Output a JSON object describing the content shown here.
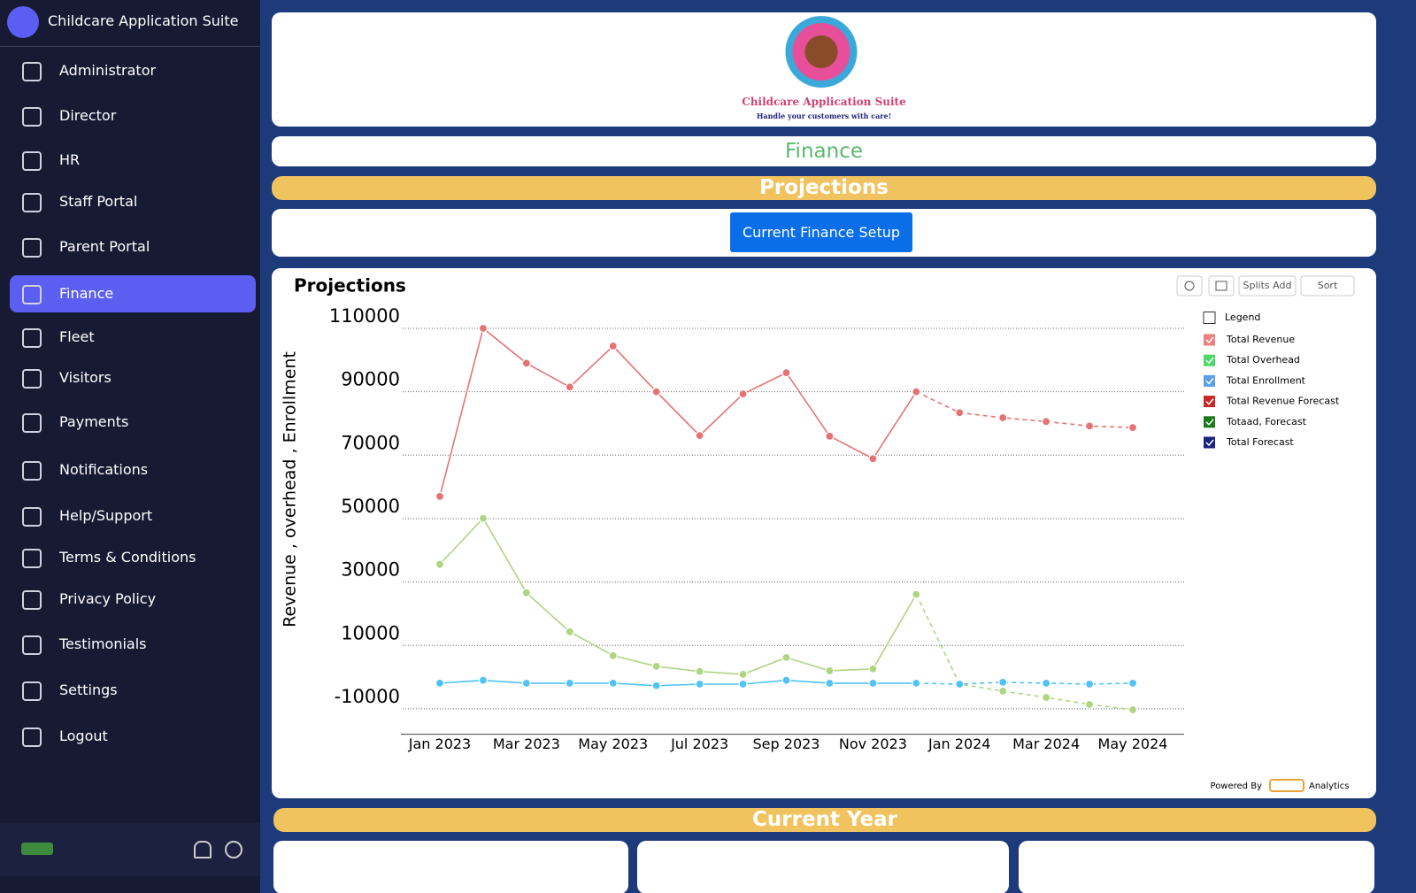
{
  "sidebar": {
    "title": "Childcare Application Suite",
    "selected": 5,
    "nav": [
      "Administrator",
      "Director",
      "HR",
      "Staff Portal",
      "Parent Portal",
      "Finance",
      "Fleet",
      "Visitors",
      "Payments",
      "Notifications",
      "Help/Support",
      "Terms & Conditions",
      "Privacy Policy",
      "Testimonials",
      "Settings",
      "Logout"
    ]
  },
  "header": {
    "logo_title": "Childcare Application Suite",
    "logo_tagline": "Handle your customers with care!"
  },
  "page": {
    "section": "Finance",
    "banner": "Projections",
    "button": "Current Finance Setup",
    "footer_banner": "Current Year"
  },
  "toolbar": {
    "splits": "Splits Add",
    "sort": "Sort"
  },
  "credits": {
    "powered_by": "Powered By",
    "analytics": "Analytics"
  },
  "chart_data": {
    "type": "line",
    "title": "Projections",
    "y_label": "Revenue , overhead , Enrollment",
    "legend_title": "Legend",
    "categories": [
      "Jan 2023",
      null,
      "Mar 2023",
      null,
      "May 2023",
      null,
      "Jul 2023",
      null,
      "Sep 2023",
      null,
      "Nov 2023",
      null,
      "Jan 2024",
      null,
      "Mar 2024",
      null,
      "May 2024"
    ],
    "ylim": [
      -18000,
      116000
    ],
    "yticks": [
      -10000,
      10000,
      30000,
      50000,
      70000,
      90000,
      110000
    ],
    "grid": true,
    "series": [
      {
        "name": "Total Revenue",
        "color": "#e57373",
        "swatch": "#ef7f7f",
        "dashed": false,
        "values": [
          57000,
          110000,
          99000,
          91500,
          104400,
          90000,
          76200,
          89300,
          96000,
          76000,
          68900,
          90000,
          null,
          null,
          null,
          null,
          null
        ]
      },
      {
        "name": "Total Overhead",
        "color": "#aed581",
        "swatch": "#4cd964",
        "dashed": false,
        "values": [
          35600,
          50100,
          26600,
          14300,
          6800,
          3400,
          1800,
          900,
          6200,
          2000,
          2600,
          26100,
          null,
          null,
          null,
          null,
          null
        ]
      },
      {
        "name": "Total Enrollment",
        "color": "#4fc3f7",
        "swatch": "#5b9ee8",
        "dashed": false,
        "values": [
          -1900,
          -1000,
          -1900,
          -1900,
          -1900,
          -2700,
          -2200,
          -2200,
          -1000,
          -1900,
          -1900,
          -1900,
          null,
          null,
          null,
          null,
          null
        ]
      },
      {
        "name": "Total Revenue Forecast",
        "color": "#e57373",
        "swatch": "#c62828",
        "dashed": true,
        "values": [
          null,
          null,
          null,
          null,
          null,
          null,
          null,
          null,
          null,
          null,
          null,
          90000,
          83400,
          81800,
          80600,
          79200,
          78700
        ]
      },
      {
        "name": "Totaad, Forecast",
        "color": "#aed581",
        "swatch": "#1b7a1b",
        "dashed": true,
        "values": [
          null,
          null,
          null,
          null,
          null,
          null,
          null,
          null,
          null,
          null,
          null,
          26100,
          -2200,
          -4400,
          -6400,
          -8600,
          -10300
        ]
      },
      {
        "name": "Total Forecast",
        "color": "#4fc3f7",
        "swatch": "#1a237e",
        "dashed": true,
        "values": [
          null,
          null,
          null,
          null,
          null,
          null,
          null,
          null,
          null,
          null,
          null,
          -1900,
          -2200,
          -1600,
          -1900,
          -2200,
          -1900
        ]
      }
    ]
  }
}
